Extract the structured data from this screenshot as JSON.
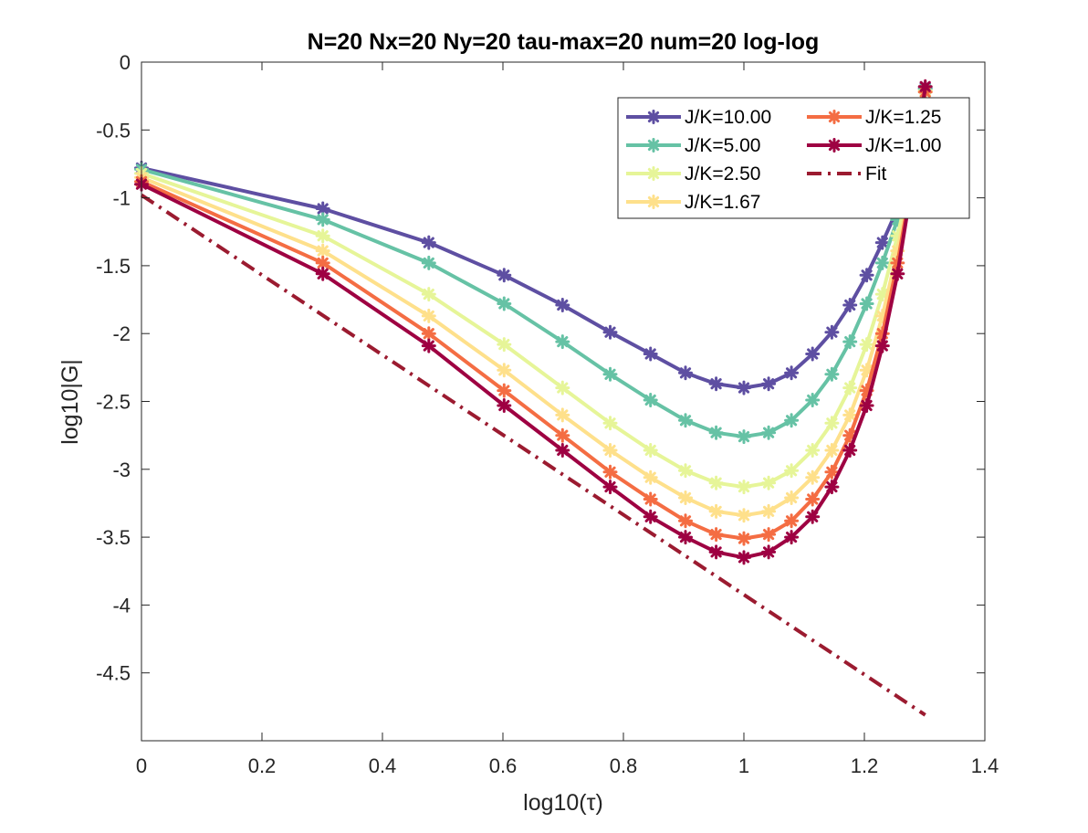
{
  "chart_data": {
    "type": "line",
    "title": "N=20 Nx=20 Ny=20 tau-max=20 num=20 log-log",
    "xlabel": "log10(τ)",
    "ylabel": "log10|G|",
    "xlim": [
      0,
      1.4
    ],
    "ylim": [
      -5,
      0
    ],
    "x_ticks": [
      "0",
      "0.2",
      "0.4",
      "0.6",
      "0.8",
      "1",
      "1.2",
      "1.4"
    ],
    "y_ticks": [
      "0",
      "-0.5",
      "-1",
      "-1.5",
      "-2",
      "-2.5",
      "-3",
      "-3.5",
      "-4",
      "-4.5"
    ],
    "grid": false,
    "legend_position": "top-right",
    "legend_columns": 2,
    "x": [
      0,
      0.301,
      0.477,
      0.602,
      0.699,
      0.778,
      0.845,
      0.903,
      0.954,
      1.0,
      1.041,
      1.079,
      1.114,
      1.146,
      1.176,
      1.204,
      1.23,
      1.255,
      1.279,
      1.301
    ],
    "series": [
      {
        "name": "J/K=10.00",
        "color": "#5e4fa2",
        "values": [
          -0.78,
          -1.08,
          -1.33,
          -1.57,
          -1.79,
          -1.99,
          -2.15,
          -2.29,
          -2.37,
          -2.4,
          -2.37,
          -2.29,
          -2.15,
          -1.99,
          -1.79,
          -1.57,
          -1.33,
          -1.08,
          -0.78,
          -0.19
        ]
      },
      {
        "name": "J/K=5.00",
        "color": "#66c2a5",
        "values": [
          -0.79,
          -1.16,
          -1.48,
          -1.78,
          -2.06,
          -2.3,
          -2.49,
          -2.64,
          -2.73,
          -2.76,
          -2.73,
          -2.64,
          -2.49,
          -2.3,
          -2.06,
          -1.78,
          -1.48,
          -1.16,
          -0.79,
          -0.2
        ]
      },
      {
        "name": "J/K=2.50",
        "color": "#e6f598",
        "values": [
          -0.82,
          -1.28,
          -1.71,
          -2.08,
          -2.4,
          -2.66,
          -2.86,
          -3.01,
          -3.1,
          -3.13,
          -3.1,
          -3.01,
          -2.86,
          -2.66,
          -2.4,
          -2.08,
          -1.71,
          -1.28,
          -0.82,
          -0.21
        ]
      },
      {
        "name": "J/K=1.67",
        "color": "#fee08b",
        "values": [
          -0.85,
          -1.39,
          -1.87,
          -2.27,
          -2.6,
          -2.86,
          -3.06,
          -3.21,
          -3.31,
          -3.34,
          -3.31,
          -3.21,
          -3.06,
          -2.86,
          -2.6,
          -2.27,
          -1.87,
          -1.39,
          -0.85,
          -0.22
        ]
      },
      {
        "name": "J/K=1.25",
        "color": "#f46d43",
        "values": [
          -0.88,
          -1.48,
          -2.0,
          -2.42,
          -2.75,
          -3.02,
          -3.22,
          -3.38,
          -3.48,
          -3.51,
          -3.48,
          -3.38,
          -3.22,
          -3.02,
          -2.75,
          -2.42,
          -2.0,
          -1.48,
          -0.88,
          -0.22
        ]
      },
      {
        "name": "J/K=1.00",
        "color": "#9e0142",
        "values": [
          -0.9,
          -1.56,
          -2.09,
          -2.53,
          -2.86,
          -3.13,
          -3.35,
          -3.5,
          -3.61,
          -3.65,
          -3.61,
          -3.5,
          -3.35,
          -3.13,
          -2.86,
          -2.53,
          -2.09,
          -1.56,
          -0.9,
          -0.18
        ]
      }
    ],
    "fit": {
      "name": "Fit",
      "color": "#9b1b30",
      "x": [
        0,
        1.301
      ],
      "values": [
        -0.98,
        -4.81
      ]
    }
  }
}
